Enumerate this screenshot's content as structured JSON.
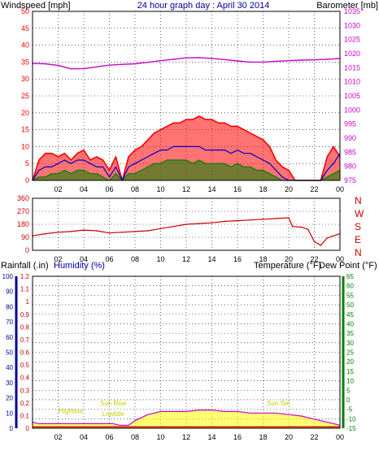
{
  "colors": {
    "windspeed": "#ff0000",
    "windavg": "#0000c8",
    "windlow": "#008000",
    "barometer": "#cc00cc",
    "direction": "#cc0000",
    "rainfall": "#cc0000",
    "humidity": "#000099",
    "temperature": "#008000",
    "dewpoint": "#cc00cc",
    "solar": "#ffff00",
    "solar_line": "#cc00cc",
    "grid": "#000000"
  },
  "header": {
    "left": "Windspeed [mph]",
    "center": "24 hour graph day : April 30 2014",
    "right": "Barometer [mb]"
  },
  "lower_header": {
    "rainfall": "Rainfall (.in)",
    "humidity": "Humidity (%)",
    "temperature": "Temperature (°F)",
    "dewpoint": "Dew Point (°F)"
  },
  "x_ticks": [
    "02",
    "04",
    "06",
    "08",
    "10",
    "12",
    "14",
    "16",
    "18",
    "20",
    "22",
    "00"
  ],
  "compass": [
    "N",
    "W",
    "S",
    "E",
    "N"
  ],
  "annotations": [
    {
      "text": "Hightide",
      "hour": 3.0,
      "value": 10
    },
    {
      "text": "Sun Rise",
      "hour": 6.3,
      "value": 15
    },
    {
      "text": "Lowtide",
      "hour": 6.3,
      "value": 8
    },
    {
      "text": "Sun Set",
      "hour": 19.2,
      "value": 15
    }
  ],
  "chart_data": [
    {
      "type": "line",
      "title": "24 hour graph day : April 30 2014",
      "xlabel": "",
      "x_range_hours": [
        0,
        24
      ],
      "y_left": {
        "label": "Windspeed [mph]",
        "ylim": [
          0,
          50
        ],
        "ticks": [
          0,
          5,
          10,
          15,
          20,
          25,
          30,
          35,
          40,
          45,
          50
        ]
      },
      "y_right": {
        "label": "Barometer [mb]",
        "ylim": [
          975,
          1035
        ],
        "ticks": [
          975,
          980,
          985,
          990,
          995,
          1000,
          1005,
          1010,
          1015,
          1020,
          1025,
          1030,
          1035
        ]
      },
      "grid": true,
      "series": [
        {
          "name": "Windspeed [mph]",
          "key": "wind_gust",
          "axis": "left",
          "x": [
            0,
            0.5,
            1,
            1.5,
            2,
            2.5,
            3,
            3.5,
            4,
            4.5,
            5,
            5.5,
            6,
            6.5,
            7,
            7.5,
            8,
            8.5,
            9,
            9.5,
            10,
            10.5,
            11,
            11.5,
            12,
            12.5,
            13,
            13.5,
            14,
            14.5,
            15,
            15.5,
            16,
            16.5,
            17,
            17.5,
            18,
            18.5,
            19,
            19.5,
            20,
            20.5,
            21,
            21.5,
            22,
            22.5,
            23,
            23.5,
            24
          ],
          "values": [
            0,
            6,
            8,
            8,
            7,
            8,
            6,
            8,
            9,
            6,
            7,
            6,
            3,
            7,
            0,
            7,
            9,
            10,
            12,
            14,
            15,
            16,
            17,
            17,
            18,
            18,
            19,
            18,
            18,
            17,
            17,
            16,
            16,
            15,
            14,
            13,
            12,
            10,
            6,
            4,
            3,
            0,
            0,
            0,
            0,
            0,
            7,
            10,
            7
          ]
        },
        {
          "name": "Average Windspeed",
          "key": "wind_avg",
          "axis": "left",
          "x": [
            0,
            0.5,
            1,
            1.5,
            2,
            2.5,
            3,
            3.5,
            4,
            4.5,
            5,
            5.5,
            6,
            6.5,
            7,
            7.5,
            8,
            8.5,
            9,
            9.5,
            10,
            10.5,
            11,
            11.5,
            12,
            12.5,
            13,
            13.5,
            14,
            14.5,
            15,
            15.5,
            16,
            16.5,
            17,
            17.5,
            18,
            18.5,
            19,
            19.5,
            20,
            20.5,
            21,
            21.5,
            22,
            22.5,
            23,
            23.5,
            24
          ],
          "values": [
            0,
            3,
            4,
            4,
            5,
            6,
            5,
            6,
            6,
            5,
            4,
            4,
            1,
            4,
            0,
            4,
            5,
            6,
            7,
            8,
            9,
            9,
            10,
            10,
            10,
            10,
            10,
            9,
            9,
            9,
            9,
            8,
            9,
            8,
            8,
            7,
            6,
            5,
            3,
            1,
            0,
            0,
            0,
            0,
            0,
            0,
            3,
            5,
            8
          ]
        },
        {
          "name": "Lowest Windspeed",
          "key": "wind_low",
          "axis": "left",
          "x": [
            0,
            0.5,
            1,
            1.5,
            2,
            2.5,
            3,
            3.5,
            4,
            4.5,
            5,
            5.5,
            6,
            6.5,
            7,
            7.5,
            8,
            8.5,
            9,
            9.5,
            10,
            10.5,
            11,
            11.5,
            12,
            12.5,
            13,
            13.5,
            14,
            14.5,
            15,
            15.5,
            16,
            16.5,
            17,
            17.5,
            18,
            18.5,
            19,
            19.5,
            20,
            20.5,
            21,
            21.5,
            22,
            22.5,
            23,
            23.5,
            24
          ],
          "values": [
            0,
            1,
            1,
            2,
            2,
            3,
            2,
            3,
            3,
            2,
            2,
            1,
            0,
            2,
            0,
            2,
            2,
            3,
            4,
            5,
            5,
            6,
            6,
            6,
            6,
            5,
            6,
            5,
            5,
            5,
            5,
            4,
            5,
            4,
            4,
            3,
            3,
            2,
            1,
            0,
            0,
            0,
            0,
            0,
            0,
            0,
            1,
            2,
            3
          ]
        },
        {
          "name": "Barometer [mb]",
          "key": "barometer",
          "axis": "right",
          "x": [
            0,
            1,
            2,
            3,
            4,
            5,
            6,
            7,
            8,
            9,
            10,
            11,
            12,
            13,
            14,
            15,
            16,
            17,
            18,
            19,
            20,
            21,
            22,
            23,
            24
          ],
          "values": [
            1016.5,
            1016.4,
            1015.8,
            1014.6,
            1014.7,
            1015.3,
            1015.9,
            1016.2,
            1016.4,
            1016.9,
            1017.5,
            1018.0,
            1018.5,
            1018.6,
            1018.3,
            1017.9,
            1017.4,
            1017.0,
            1017.0,
            1017.3,
            1017.5,
            1017.7,
            1017.8,
            1018.0,
            1018.3
          ]
        }
      ]
    },
    {
      "type": "line",
      "title": "",
      "xlabel": "",
      "x_range_hours": [
        0,
        24
      ],
      "y_left": {
        "label": "",
        "ylim": [
          0,
          360
        ],
        "ticks": [
          0,
          45,
          90,
          135,
          180,
          225,
          270,
          315,
          360
        ]
      },
      "y_right": {
        "label": "",
        "ticks": [
          "N",
          "W",
          "S",
          "E",
          "N"
        ]
      },
      "grid": true,
      "series": [
        {
          "name": "Wind direction",
          "key": "wind_dir",
          "axis": "left",
          "x": [
            0,
            1,
            2,
            3,
            4,
            5,
            6,
            7,
            8,
            9,
            10,
            11,
            12,
            13,
            14,
            15,
            16,
            17,
            18,
            19,
            20,
            20.3,
            21,
            21.5,
            22,
            22.5,
            23,
            23.5,
            24
          ],
          "values": [
            100,
            115,
            125,
            130,
            140,
            135,
            120,
            125,
            130,
            135,
            150,
            165,
            180,
            185,
            190,
            200,
            205,
            210,
            215,
            220,
            225,
            165,
            160,
            145,
            60,
            35,
            85,
            100,
            115
          ]
        }
      ]
    },
    {
      "type": "line",
      "title": "",
      "xlabel": "",
      "x_range_hours": [
        0,
        24
      ],
      "y_left": {
        "label": "Rainfall (.in)",
        "ylim": [
          0,
          1.2
        ],
        "ticks": [
          0,
          0.1,
          0.2,
          0.3,
          0.4,
          0.5,
          0.6,
          0.7,
          0.8,
          0.9,
          1.0,
          1.1,
          1.2
        ]
      },
      "y_left_outer": {
        "label": "Humidity (%)",
        "ylim": [
          0,
          100
        ],
        "ticks": [
          0,
          10,
          20,
          30,
          40,
          50,
          60,
          70,
          80,
          90,
          100
        ]
      },
      "y_right": {
        "label": "Temperature (°F)",
        "ylim": [
          -15,
          65
        ],
        "ticks": [
          -15,
          -10,
          -5,
          0,
          5,
          10,
          15,
          20,
          25,
          30,
          35,
          40,
          45,
          50,
          55,
          60,
          65
        ]
      },
      "grid": true,
      "series": [
        {
          "name": "Rainfall (.in)",
          "key": "rainfall",
          "axis": "left",
          "x": [
            0,
            24
          ],
          "values": [
            0.01,
            0.01
          ]
        },
        {
          "name": "Solar",
          "key": "solar",
          "axis": "outer",
          "x": [
            0,
            0.5,
            1,
            2,
            3,
            4,
            5,
            6,
            6.3,
            6.8,
            7,
            7.5,
            8,
            9,
            10,
            11,
            12,
            13,
            14,
            15,
            16,
            17,
            18,
            19,
            20,
            21,
            22,
            23,
            24
          ],
          "values": [
            4,
            3,
            3,
            3,
            3,
            3,
            3,
            3,
            3,
            2,
            2,
            2,
            5,
            9,
            11,
            11,
            11,
            12,
            12,
            11,
            11,
            10,
            10,
            10,
            9,
            8,
            6,
            4,
            2
          ]
        }
      ]
    }
  ]
}
